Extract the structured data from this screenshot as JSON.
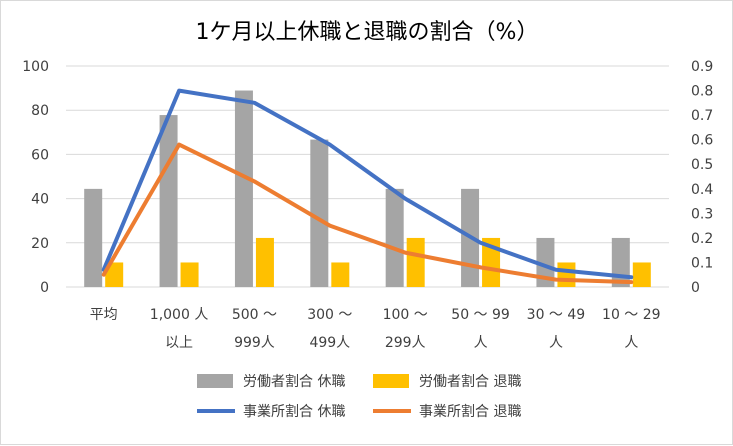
{
  "chart_data": {
    "type": "bar",
    "title": "1ケ月以上休職と退職の割合（%）",
    "categories": [
      [
        "平均"
      ],
      [
        "1,000 人",
        "以上"
      ],
      [
        "500 〜",
        "999人"
      ],
      [
        "300 〜",
        "499人"
      ],
      [
        "100 〜",
        "299人"
      ],
      [
        "50 〜 99",
        "人"
      ],
      [
        "30 〜 49",
        "人"
      ],
      [
        "10 〜 29",
        "人"
      ]
    ],
    "y_left": {
      "min": 0,
      "max": 100,
      "ticks": [
        "0",
        "20",
        "40",
        "60",
        "80",
        "100"
      ]
    },
    "y_right": {
      "min": 0,
      "max": 0.9,
      "ticks": [
        "0",
        "0.1",
        "0.2",
        "0.3",
        "0.4",
        "0.5",
        "0.6",
        "0.7",
        "0.8",
        "0.9"
      ]
    },
    "series": [
      {
        "name": "労働者割合 休職",
        "type": "bar",
        "axis": "left",
        "color": "#a5a5a5",
        "values": [
          44.4,
          77.8,
          88.9,
          66.7,
          44.4,
          44.4,
          22.2,
          22.2
        ]
      },
      {
        "name": "労働者割合 退職",
        "type": "bar",
        "axis": "left",
        "color": "#ffc000",
        "values": [
          11.1,
          11.1,
          22.2,
          11.1,
          22.2,
          22.2,
          11.1,
          11.1
        ]
      },
      {
        "name": "事業所割合 休職",
        "type": "line",
        "axis": "right",
        "color": "#4472c4",
        "values": [
          0.07,
          0.8,
          0.75,
          0.58,
          0.36,
          0.18,
          0.07,
          0.04
        ]
      },
      {
        "name": "事業所割合 退職",
        "type": "line",
        "axis": "right",
        "color": "#ed7d31",
        "values": [
          0.05,
          0.58,
          0.43,
          0.25,
          0.14,
          0.08,
          0.03,
          0.02
        ]
      }
    ],
    "grid": true,
    "legend_position": "bottom"
  }
}
